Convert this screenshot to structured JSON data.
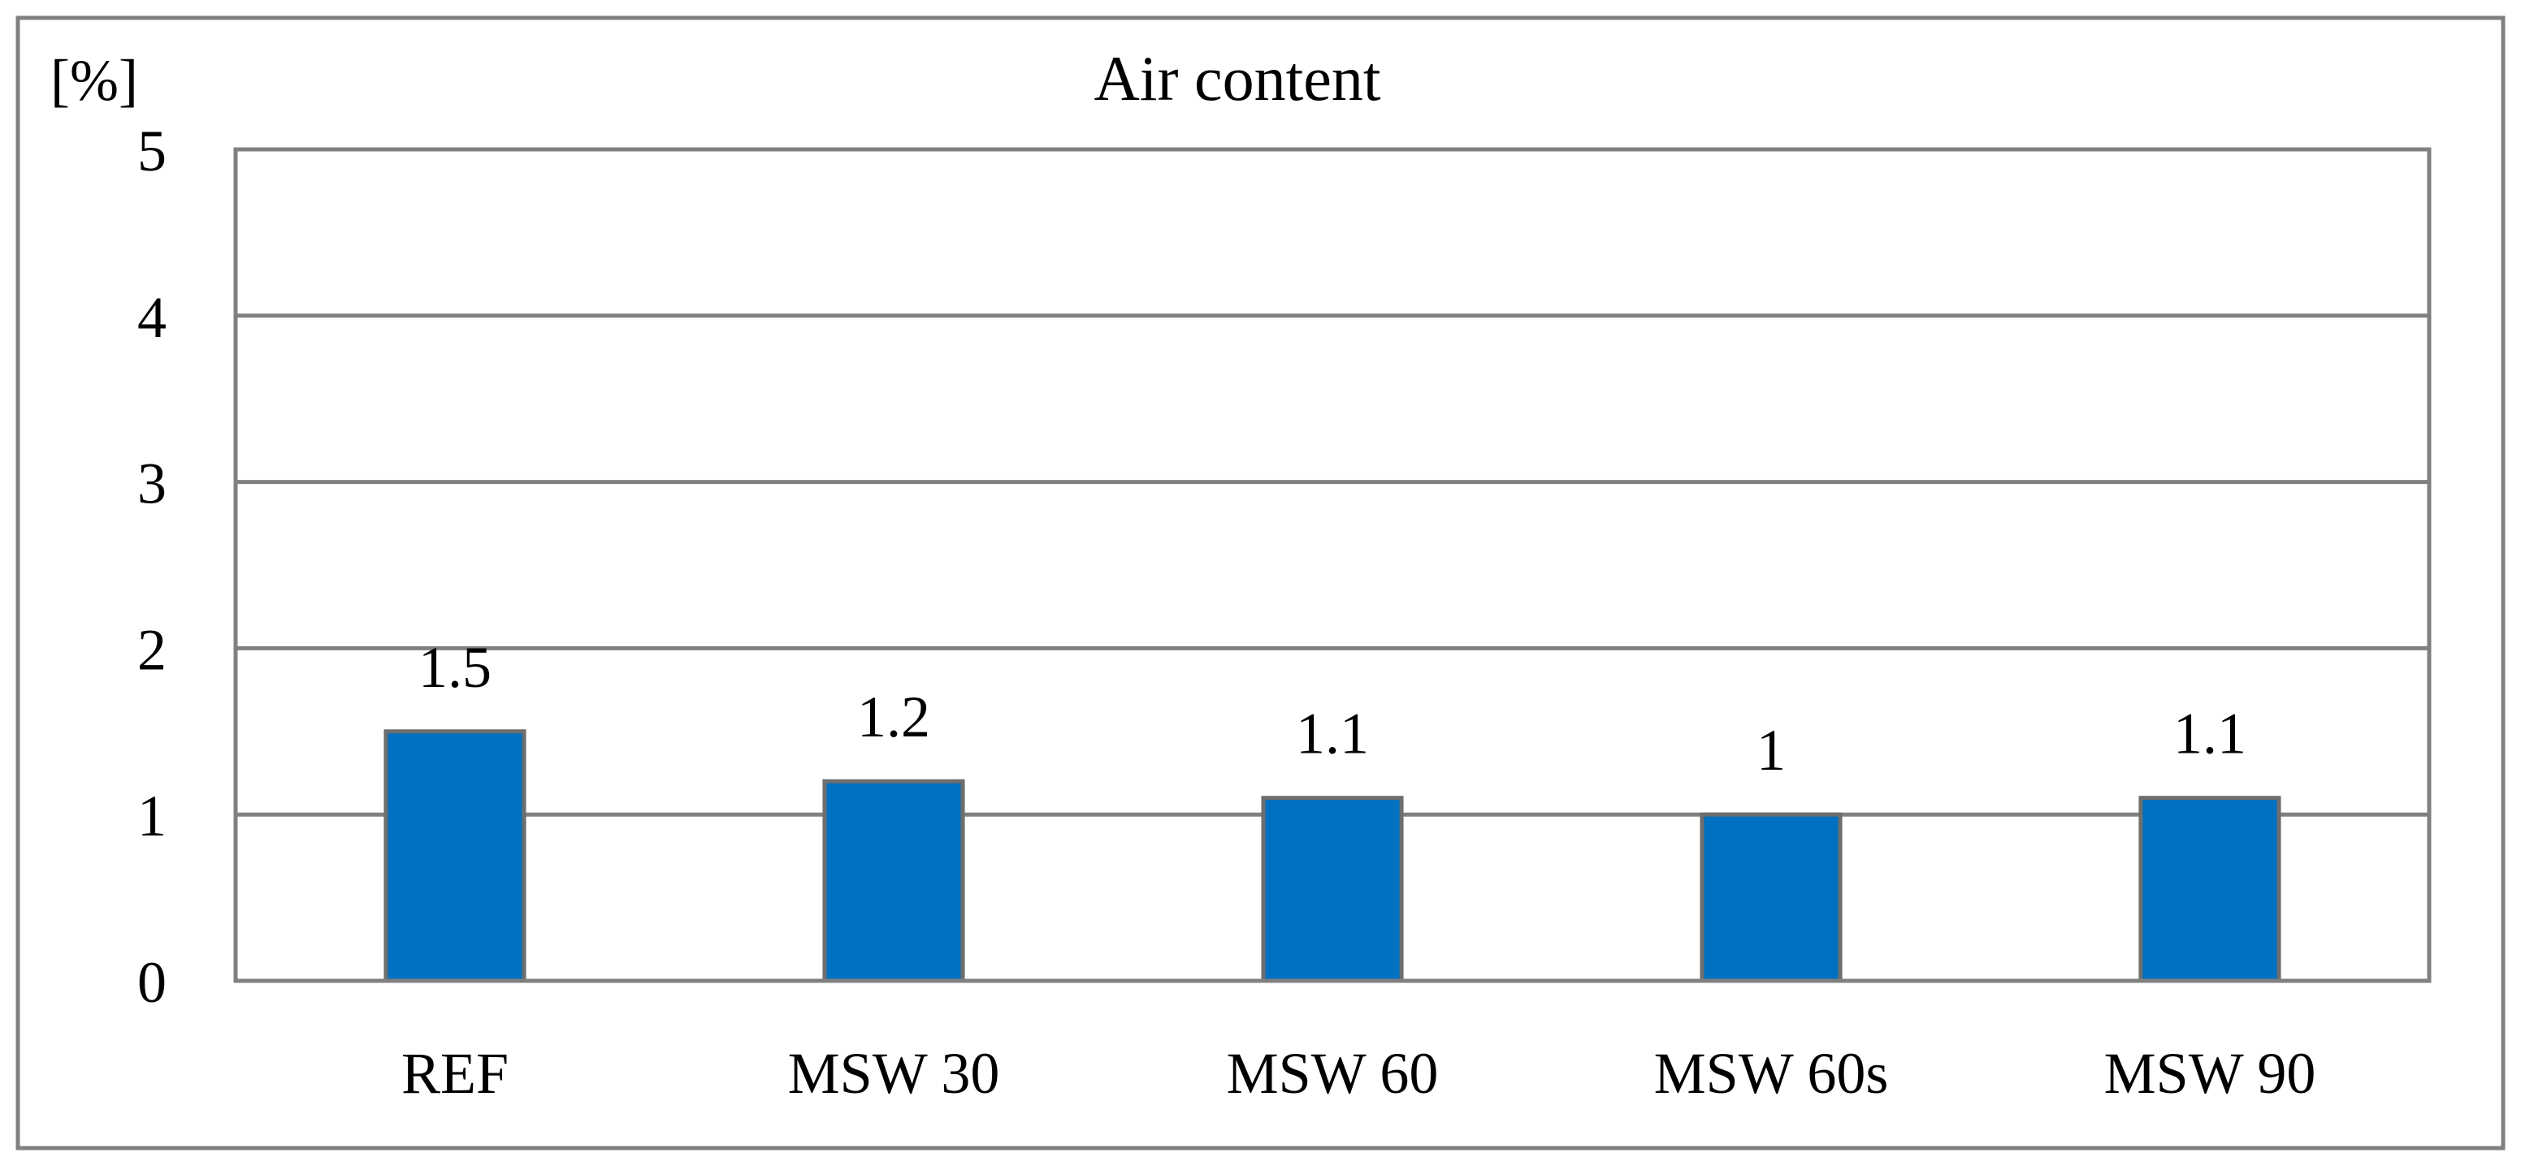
{
  "chart_data": {
    "type": "bar",
    "title": "Air content",
    "ylabel": "[%]",
    "xlabel": "",
    "categories": [
      "REF",
      "MSW 30",
      "MSW 60",
      "MSW 60s",
      "MSW 90"
    ],
    "values": [
      1.5,
      1.2,
      1.1,
      1,
      1.1
    ],
    "data_labels": [
      "1.5",
      "1.2",
      "1.1",
      "1",
      "1.1"
    ],
    "ylim": [
      0,
      5
    ],
    "yticks": [
      0,
      1,
      2,
      3,
      4,
      5
    ],
    "grid": true,
    "legend": "none",
    "colors": {
      "bar": "#0070C0",
      "bar_edge": "#6E6E6E",
      "grid": "#808080",
      "frame": "#808080"
    }
  }
}
